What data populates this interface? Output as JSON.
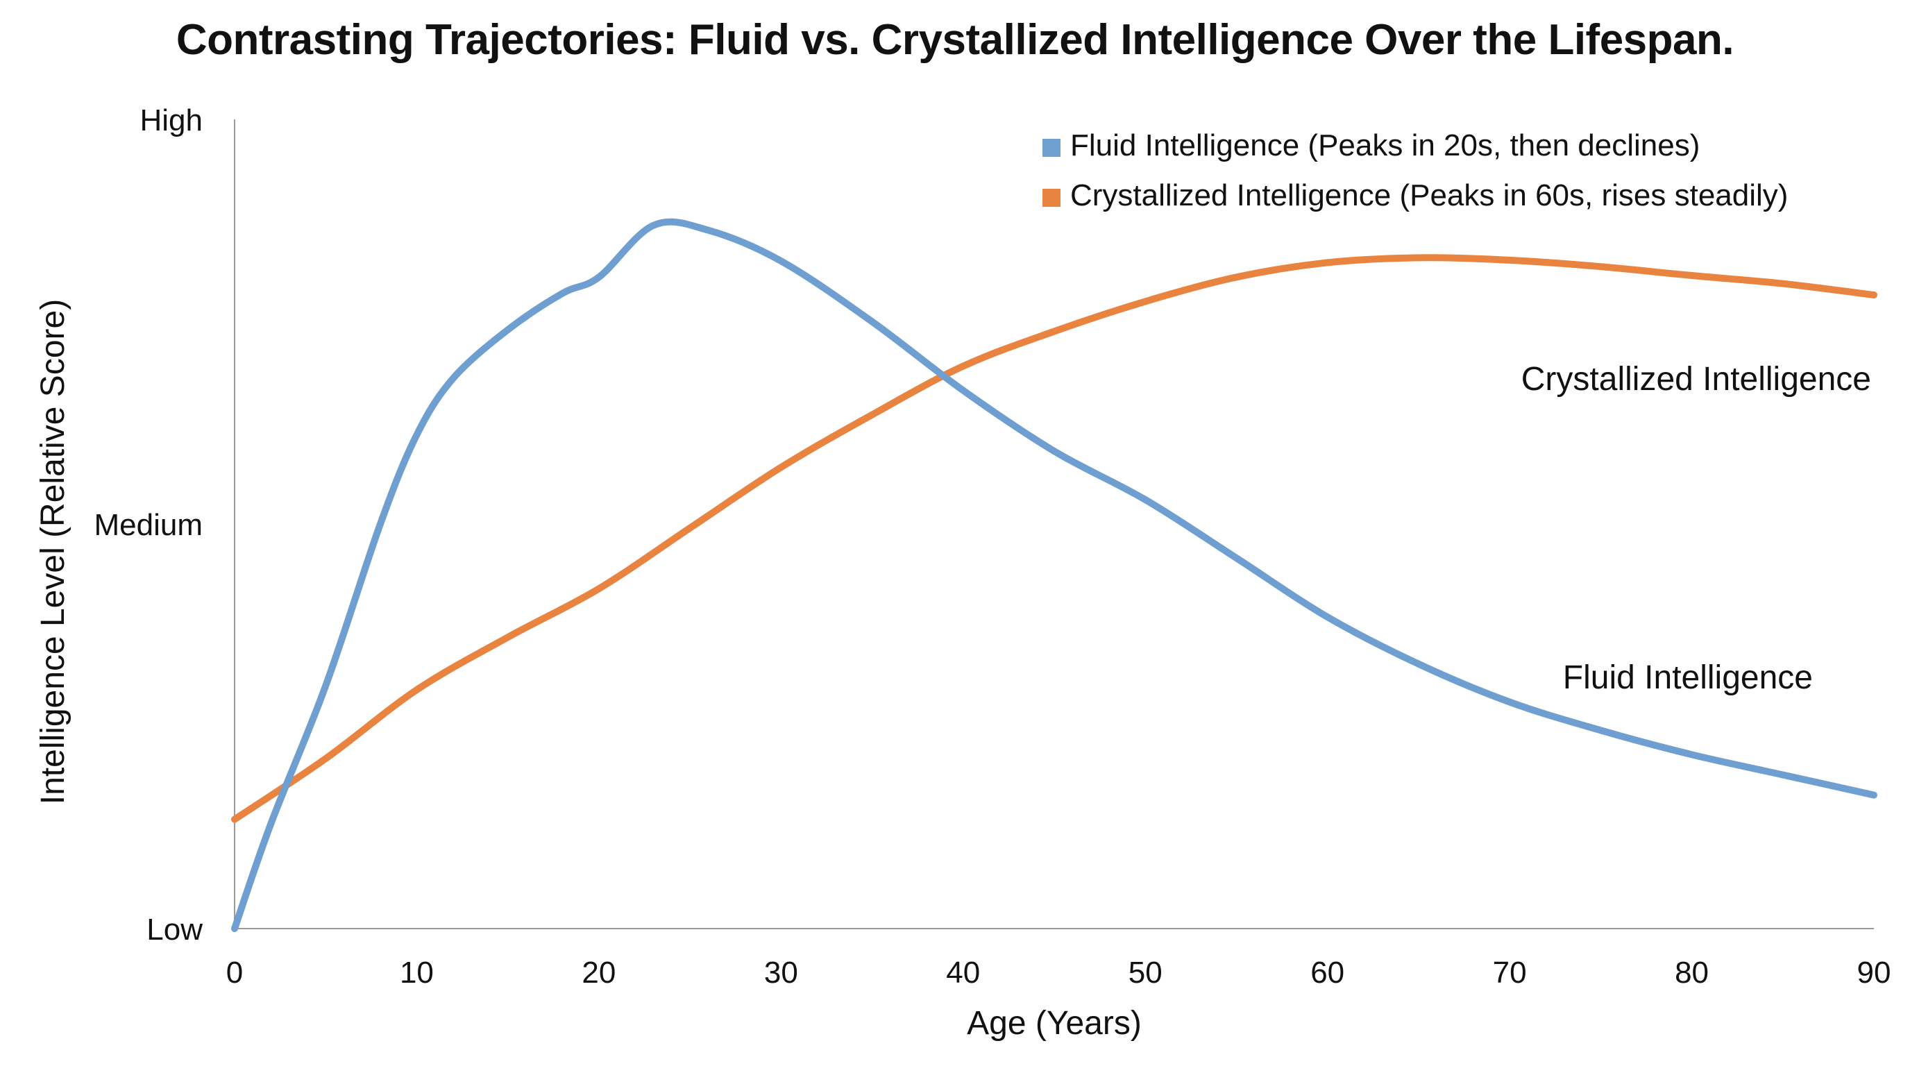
{
  "chart_data": {
    "type": "line",
    "title": "Contrasting Trajectories: Fluid vs. Crystallized Intelligence Over the Lifespan.",
    "xlabel": "Age (Years)",
    "ylabel": "Intelligence Level (Relative Score)",
    "xlim": [
      0,
      90
    ],
    "ylim": [
      0,
      100
    ],
    "x_ticks": [
      0,
      10,
      20,
      30,
      40,
      50,
      60,
      70,
      80,
      90
    ],
    "y_ticks": [
      {
        "value": 0,
        "label": "Low"
      },
      {
        "value": 50,
        "label": "Medium"
      },
      {
        "value": 100,
        "label": "High"
      }
    ],
    "grid": false,
    "legend_position": "top-right",
    "series": [
      {
        "name": "Fluid Intelligence (Peaks in 20s, then declines)",
        "end_label": "Fluid Intelligence",
        "color": "#6f9fd0",
        "points": [
          [
            0,
            0
          ],
          [
            2,
            13
          ],
          [
            5,
            30
          ],
          [
            8,
            50
          ],
          [
            10,
            61
          ],
          [
            12,
            68
          ],
          [
            15,
            74
          ],
          [
            18,
            78.5
          ],
          [
            20,
            80.5
          ],
          [
            23,
            86.9
          ],
          [
            26,
            86.3
          ],
          [
            30,
            82.5
          ],
          [
            35,
            75
          ],
          [
            40,
            66.5
          ],
          [
            45,
            59
          ],
          [
            50,
            53
          ],
          [
            55,
            45.8
          ],
          [
            60,
            38.5
          ],
          [
            65,
            32.7
          ],
          [
            70,
            28
          ],
          [
            75,
            24.5
          ],
          [
            80,
            21.5
          ],
          [
            85,
            19
          ],
          [
            90,
            16.5
          ]
        ]
      },
      {
        "name": "Crystallized Intelligence (Peaks in 60s, rises steadily)",
        "end_label": "Crystallized Intelligence",
        "color": "#e8843f",
        "points": [
          [
            0,
            13.5
          ],
          [
            5,
            21
          ],
          [
            10,
            29.5
          ],
          [
            15,
            36
          ],
          [
            20,
            42
          ],
          [
            25,
            49.5
          ],
          [
            30,
            57
          ],
          [
            35,
            63.5
          ],
          [
            40,
            69.5
          ],
          [
            45,
            73.8
          ],
          [
            50,
            77.5
          ],
          [
            55,
            80.5
          ],
          [
            60,
            82.3
          ],
          [
            65,
            82.9
          ],
          [
            70,
            82.6
          ],
          [
            75,
            81.8
          ],
          [
            80,
            80.7
          ],
          [
            85,
            79.7
          ],
          [
            90,
            78.3
          ]
        ]
      }
    ]
  }
}
